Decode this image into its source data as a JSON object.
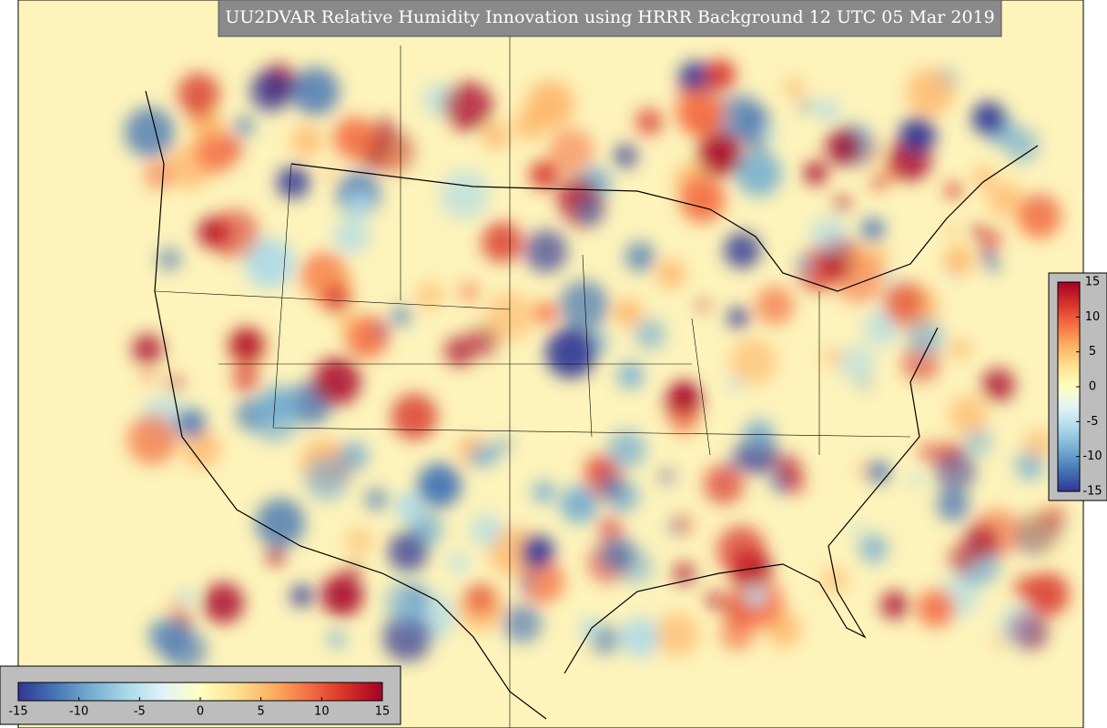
{
  "title": "UU2DVAR Relative Humidity Innovation using HRRR Background 12 UTC 05 Mar 2019",
  "colorbar_bottom": {
    "lim": [
      -15,
      15
    ],
    "ticks": [
      -15,
      -10,
      -5,
      0,
      5,
      10,
      15
    ]
  },
  "colorbar_right": {
    "lim": [
      -15,
      15
    ],
    "ticks": [
      15,
      10,
      5,
      0,
      -5,
      -10,
      -15
    ]
  }
}
